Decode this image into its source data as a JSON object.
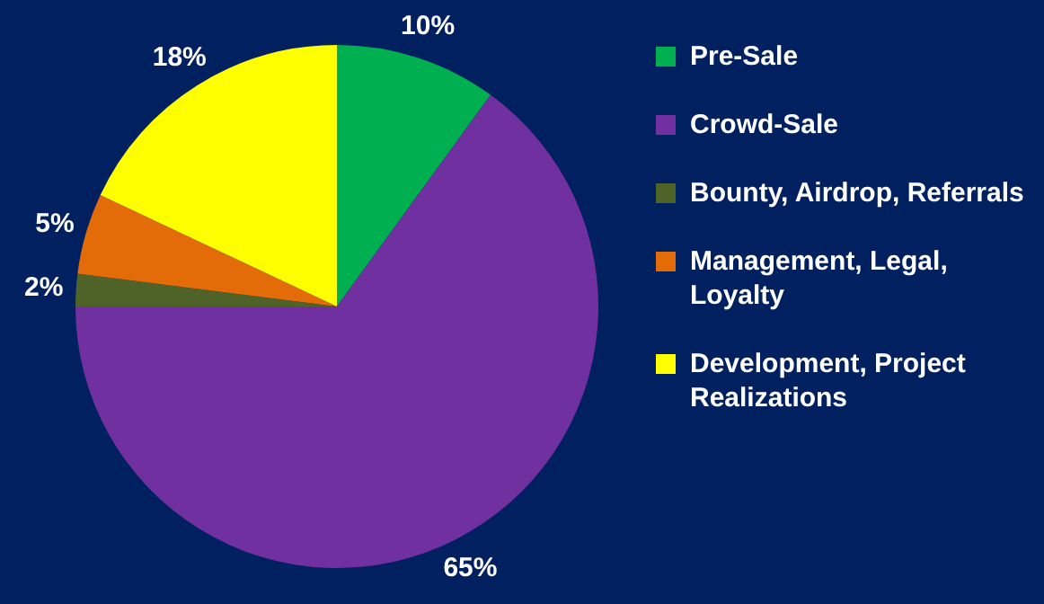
{
  "chart_data": {
    "type": "pie",
    "categories": [
      "Pre-Sale",
      "Crowd-Sale",
      "Bounty, Airdrop, Referrals",
      "Management, Legal, Loyalty",
      "Development, Project Realizations"
    ],
    "values": [
      10,
      65,
      2,
      5,
      18
    ],
    "colors": [
      "#00b050",
      "#7030a0",
      "#4f6228",
      "#e36c09",
      "#ffff00"
    ],
    "value_labels": [
      "10%",
      "65%",
      "2%",
      "5%",
      "18%"
    ],
    "legend": "right"
  }
}
